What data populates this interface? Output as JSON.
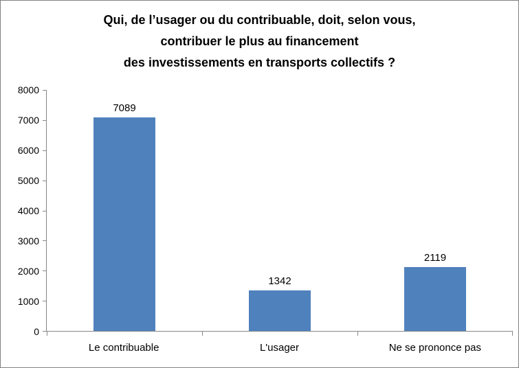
{
  "chart_data": {
    "type": "bar",
    "title_lines": [
      "Qui, de l’usager ou du contribuable, doit, selon vous,",
      "contribuer le plus au financement",
      "des investissements en transports collectifs ?"
    ],
    "title": "Qui, de l’usager ou du contribuable, doit, selon vous, contribuer le plus au financement des investissements en transports collectifs ?",
    "categories": [
      "Le contribuable",
      "L'usager",
      "Ne se prononce pas"
    ],
    "values": [
      7089,
      1342,
      2119
    ],
    "data_labels": [
      "7089",
      "1342",
      "2119"
    ],
    "y_ticks": [
      "8000",
      "7000",
      "6000",
      "5000",
      "4000",
      "3000",
      "2000",
      "1000",
      "0"
    ],
    "ylim": [
      0,
      8000
    ],
    "xlabel": "",
    "ylabel": "",
    "grid": false,
    "legend": false,
    "bar_color": "#4F81BD",
    "axis_color": "#868686"
  }
}
